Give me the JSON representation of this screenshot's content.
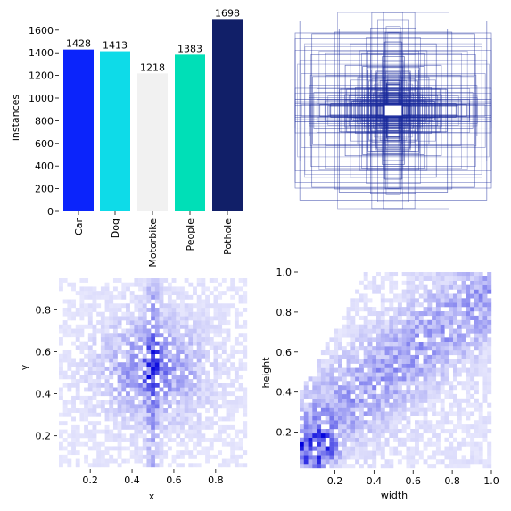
{
  "chart_data": [
    {
      "type": "bar",
      "categories": [
        "Car",
        "Dog",
        "Motorbike",
        "People",
        "Pothole"
      ],
      "values": [
        1428,
        1413,
        1218,
        1383,
        1698
      ],
      "colors": [
        "#0b24fb",
        "#0edbe8",
        "#f1f1f1",
        "#00dfb7",
        "#111f68"
      ],
      "ylabel": "instances",
      "ylim": [
        0,
        1700
      ],
      "yticks": [
        "0",
        "200",
        "400",
        "600",
        "800",
        "1000",
        "1200",
        "1400",
        "1600"
      ],
      "data_labels": [
        "1428",
        "1413",
        "1218",
        "1383",
        "1698"
      ]
    },
    {
      "type": "boxes-overlay",
      "description_shown": false,
      "box_color": "#1a2a9c",
      "axes": "off"
    },
    {
      "type": "heatmap",
      "xlabel": "x",
      "ylabel": "y",
      "xlim": [
        0.05,
        0.95
      ],
      "ylim": [
        0.05,
        0.95
      ],
      "xticks": [
        "0.2",
        "0.4",
        "0.6",
        "0.8"
      ],
      "yticks": [
        "0.2",
        "0.4",
        "0.6",
        "0.8"
      ],
      "peak": {
        "x": 0.5,
        "y": 0.52
      },
      "cmap": "Blues"
    },
    {
      "type": "heatmap",
      "xlabel": "width",
      "ylabel": "height",
      "xlim": [
        0.02,
        1.0
      ],
      "ylim": [
        0.02,
        1.0
      ],
      "xticks": [
        "0.2",
        "0.4",
        "0.6",
        "0.8",
        "1.0"
      ],
      "yticks": [
        "0.2",
        "0.4",
        "0.6",
        "0.8",
        "1.0"
      ],
      "peak": {
        "x": 0.1,
        "y": 0.12
      },
      "cmap": "Blues"
    }
  ]
}
